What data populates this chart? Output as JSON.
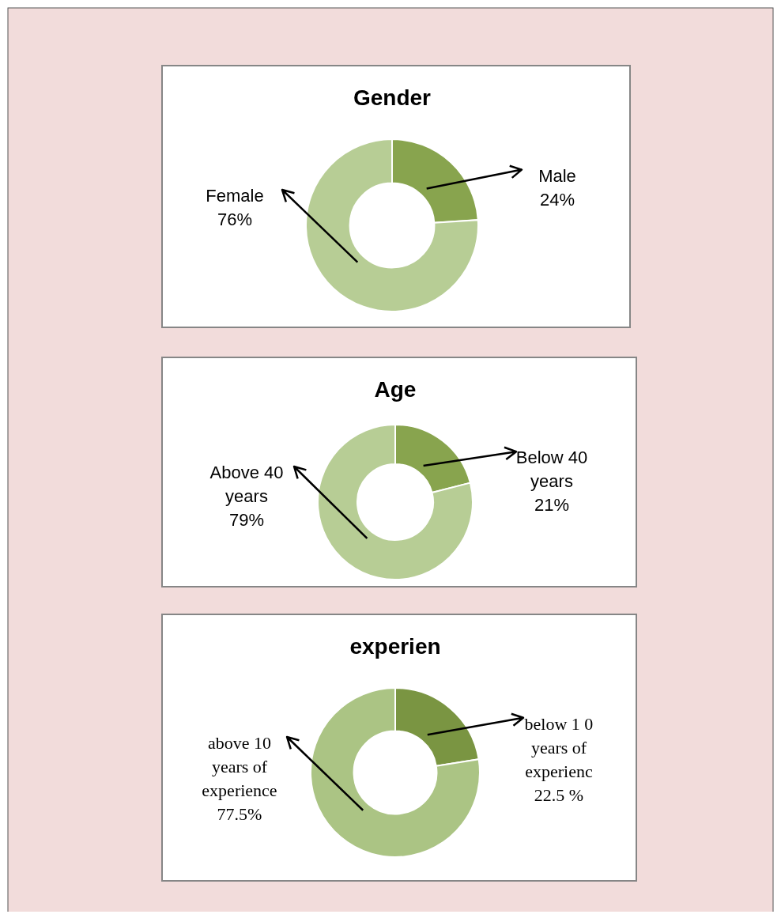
{
  "chart_data": [
    {
      "type": "donut",
      "title": "Gender",
      "categories": [
        "Male",
        "Female"
      ],
      "values": [
        24,
        76
      ],
      "colors": [
        "#88a44e",
        "#b7cd95"
      ],
      "value_labels": [
        "24%",
        "76%"
      ]
    },
    {
      "type": "donut",
      "title": "Age",
      "categories": [
        "Below 40 years",
        "Above 40 years"
      ],
      "values": [
        21,
        79
      ],
      "colors": [
        "#88a44e",
        "#b7cd95"
      ],
      "value_labels": [
        "21%",
        "79%"
      ]
    },
    {
      "type": "donut",
      "title": "experien",
      "categories": [
        "below 1 0 years of experienc",
        "above 10 years of experience"
      ],
      "values": [
        22.5,
        77.5
      ],
      "colors": [
        "#7a9542",
        "#abc484"
      ],
      "value_labels": [
        "22.5 %",
        "77.5%"
      ]
    }
  ]
}
